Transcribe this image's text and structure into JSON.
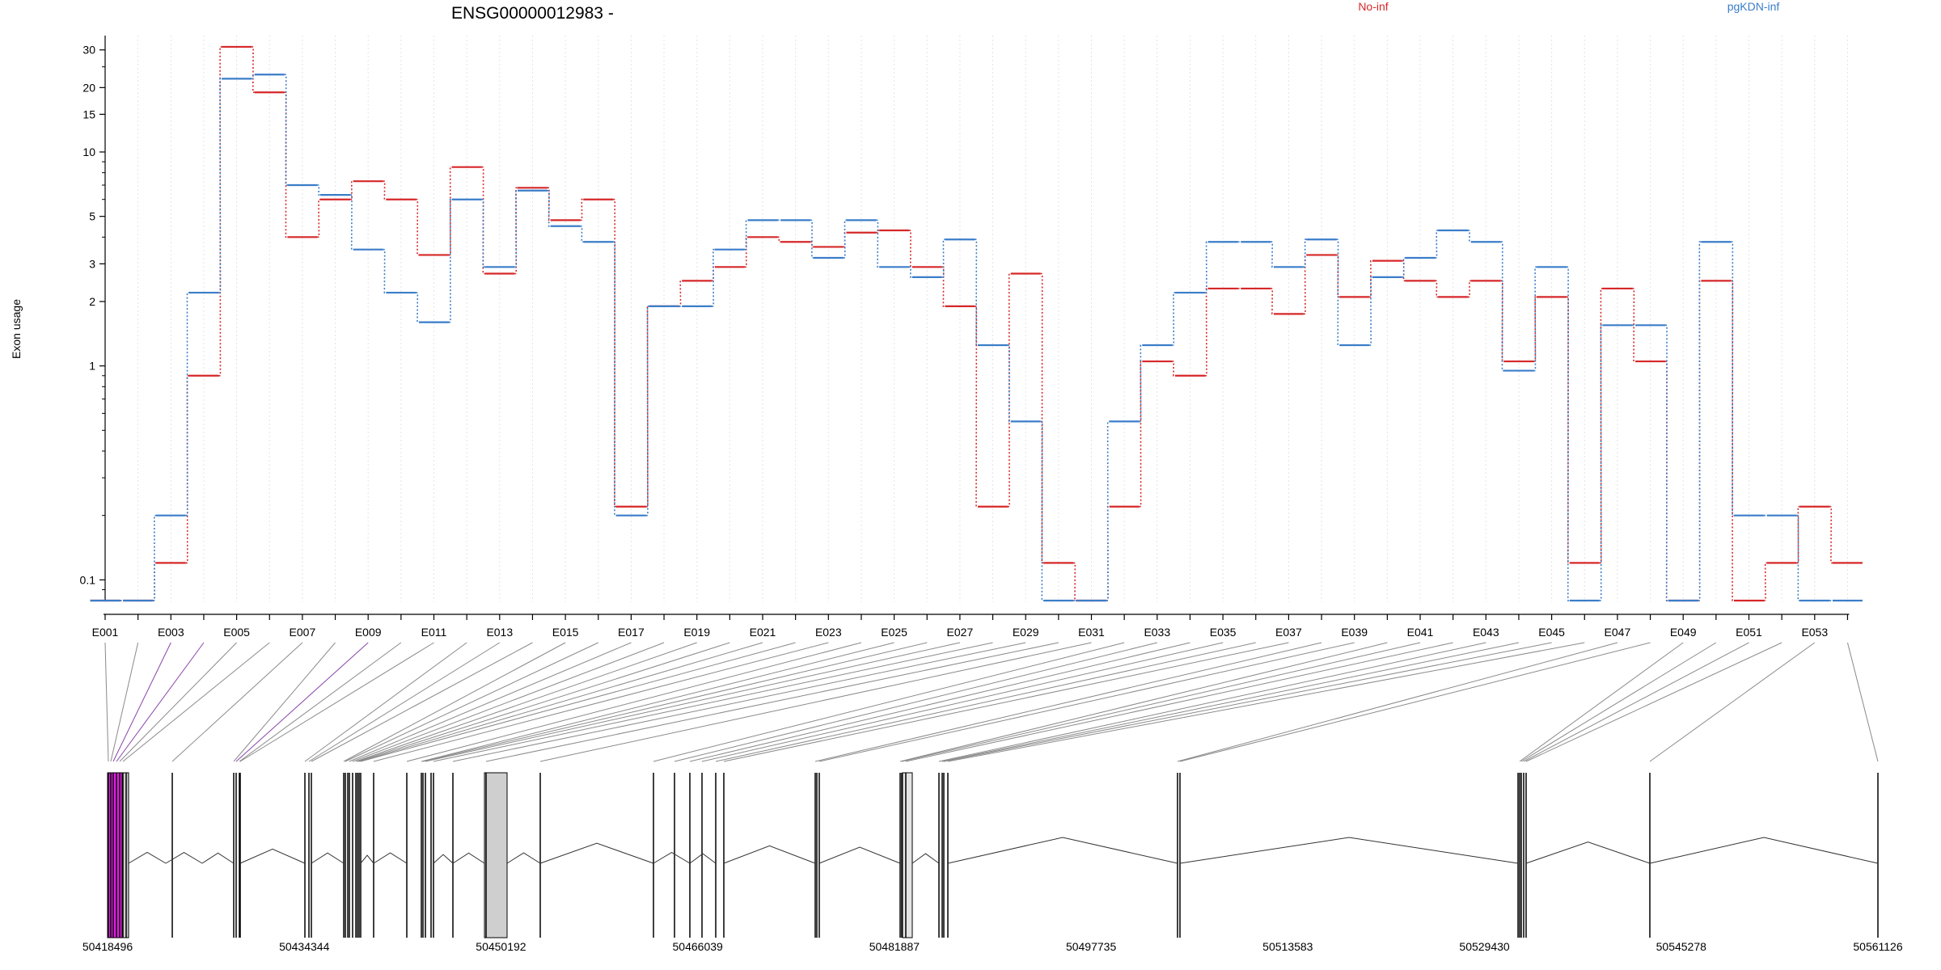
{
  "chart_data": {
    "type": "line",
    "title": "ENSG00000012983 -",
    "xlabel": "",
    "ylabel": "Exon usage",
    "y_scale": "log",
    "ylim": [
      0.08,
      35
    ],
    "y_ticks": [
      0.1,
      1,
      2,
      3,
      5,
      10,
      15,
      20,
      30
    ],
    "y_tick_labels": [
      "0.1",
      "1",
      "2",
      "3",
      "5",
      "10",
      "15",
      "20",
      "30"
    ],
    "grid": "vertical-dotted",
    "legend_position": "top-right",
    "categories": [
      "E001",
      "E002",
      "E003",
      "E004",
      "E005",
      "E006",
      "E007",
      "E008",
      "E009",
      "E010",
      "E011",
      "E012",
      "E013",
      "E014",
      "E015",
      "E016",
      "E017",
      "E018",
      "E019",
      "E020",
      "E021",
      "E022",
      "E023",
      "E024",
      "E025",
      "E026",
      "E027",
      "E028",
      "E029",
      "E030",
      "E031",
      "E032",
      "E033",
      "E034",
      "E035",
      "E036",
      "E037",
      "E038",
      "E039",
      "E040",
      "E041",
      "E042",
      "E043",
      "E044",
      "E045",
      "E046",
      "E047",
      "E048",
      "E049",
      "E050",
      "E051",
      "E052",
      "E053",
      "E054"
    ],
    "x_tick_labels": [
      "E001",
      "E003",
      "E005",
      "E007",
      "E009",
      "E011",
      "E013",
      "E015",
      "E017",
      "E019",
      "E021",
      "E023",
      "E025",
      "E027",
      "E029",
      "E031",
      "E033",
      "E035",
      "E037",
      "E039",
      "E041",
      "E043",
      "E045",
      "E047",
      "E049",
      "E051",
      "E053"
    ],
    "series": [
      {
        "name": "No-inf",
        "color": "#d62728",
        "values": [
          0.08,
          0.08,
          0.12,
          0.9,
          31,
          19,
          4,
          6,
          7.3,
          6,
          3.3,
          8.5,
          2.7,
          6.8,
          4.8,
          6,
          0.22,
          1.9,
          2.5,
          2.9,
          4,
          3.8,
          3.6,
          4.2,
          4.3,
          2.9,
          1.9,
          0.22,
          2.7,
          0.12,
          0.08,
          0.22,
          1.05,
          0.9,
          2.3,
          2.3,
          1.75,
          3.3,
          2.1,
          3.1,
          2.5,
          2.1,
          2.5,
          1.05,
          2.1,
          0.12,
          2.3,
          1.05,
          0.08,
          2.5,
          0.08,
          0.12,
          0.22,
          0.12
        ]
      },
      {
        "name": "pgKDN-inf",
        "color": "#3a7dc9",
        "values": [
          0.08,
          0.08,
          0.2,
          2.2,
          22,
          23,
          7,
          6.3,
          3.5,
          2.2,
          1.6,
          6,
          2.9,
          6.6,
          4.5,
          3.8,
          0.2,
          1.9,
          1.9,
          3.5,
          4.8,
          4.8,
          3.2,
          4.8,
          2.9,
          2.6,
          3.9,
          1.25,
          0.55,
          0.08,
          0.08,
          0.55,
          1.25,
          2.2,
          3.8,
          3.8,
          2.9,
          3.9,
          1.25,
          2.6,
          3.2,
          4.3,
          3.8,
          0.95,
          2.9,
          0.08,
          1.55,
          1.55,
          0.08,
          3.8,
          0.2,
          0.2,
          0.08,
          0.08
        ]
      }
    ],
    "gene_track": {
      "coordinate_labels": [
        "50418496",
        "50434344",
        "50450192",
        "50466039",
        "50481887",
        "50497735",
        "50513583",
        "50529430",
        "50545278",
        "50561126"
      ]
    }
  }
}
